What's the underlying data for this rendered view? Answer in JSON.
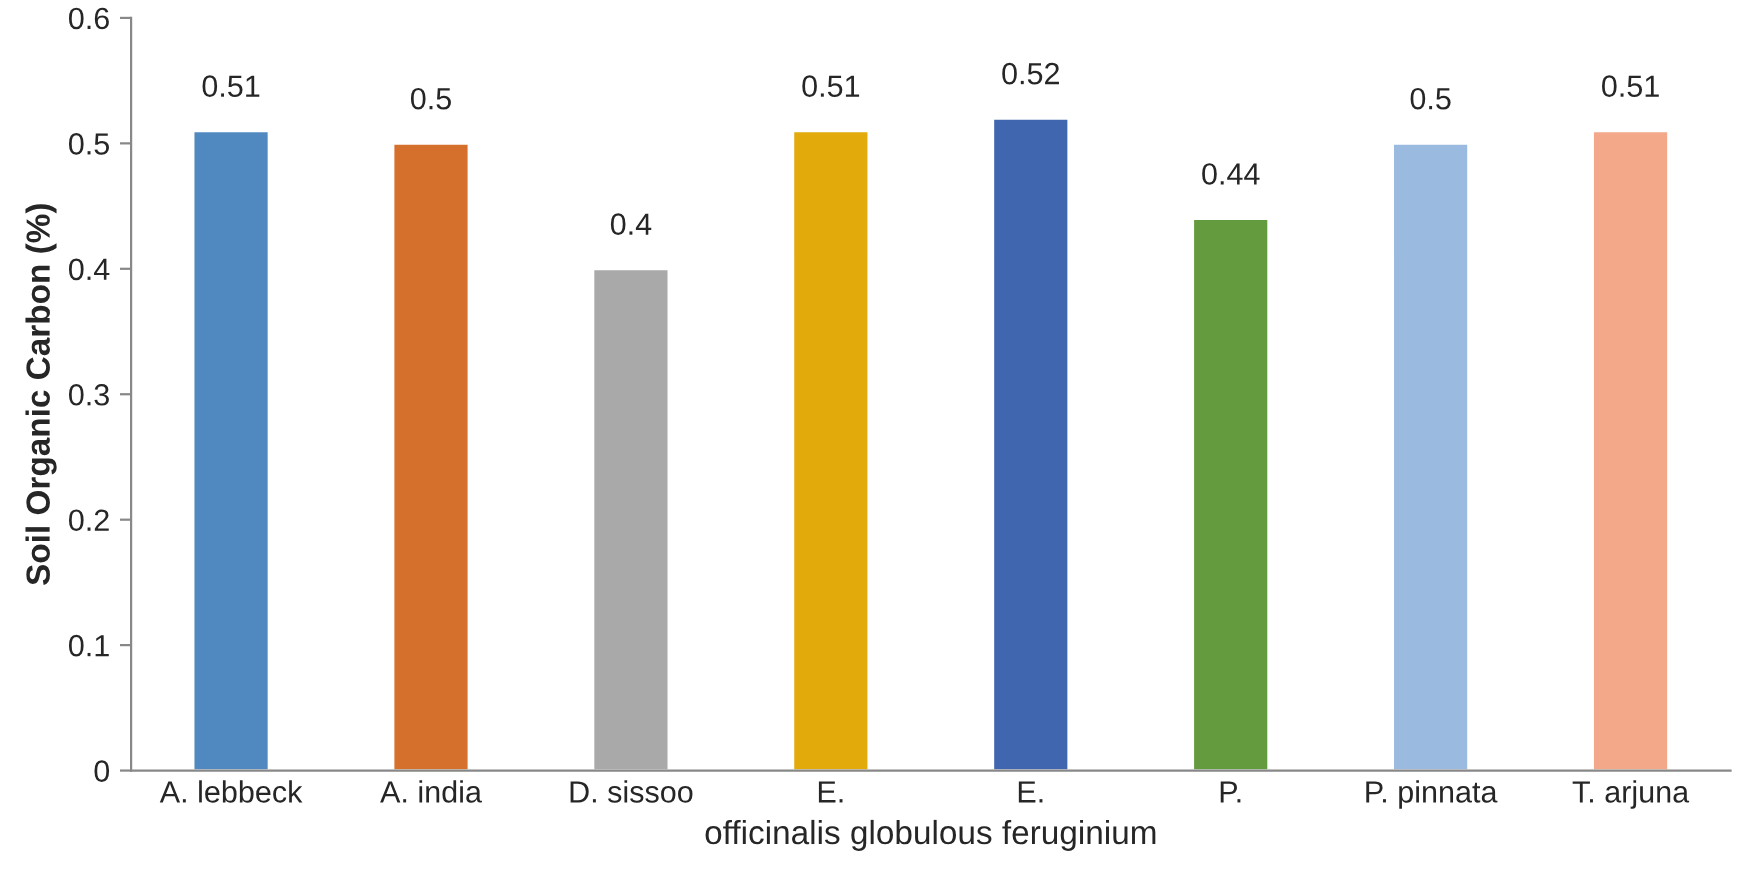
{
  "chart_data": {
    "type": "bar",
    "ylabel": "Soil Organic Carbon (%)",
    "xlabel": "officinalis globulous feruginium",
    "categories": [
      "A. lebbeck",
      "A. india",
      "D. sissoo",
      "E.",
      "E.",
      "P.",
      "P. pinnata",
      "T. arjuna"
    ],
    "values": [
      0.51,
      0.5,
      0.4,
      0.51,
      0.52,
      0.44,
      0.5,
      0.51
    ],
    "colors": [
      "#5089c0",
      "#d4702c",
      "#a9a9a9",
      "#e2aa0a",
      "#4166b0",
      "#649b3e",
      "#9bbae0",
      "#f2a889"
    ],
    "ylim": [
      0,
      0.6
    ],
    "yticks": [
      0,
      0.1,
      0.2,
      0.3,
      0.4,
      0.5,
      0.6
    ],
    "data_labels": true,
    "grid": false,
    "legend": false
  }
}
